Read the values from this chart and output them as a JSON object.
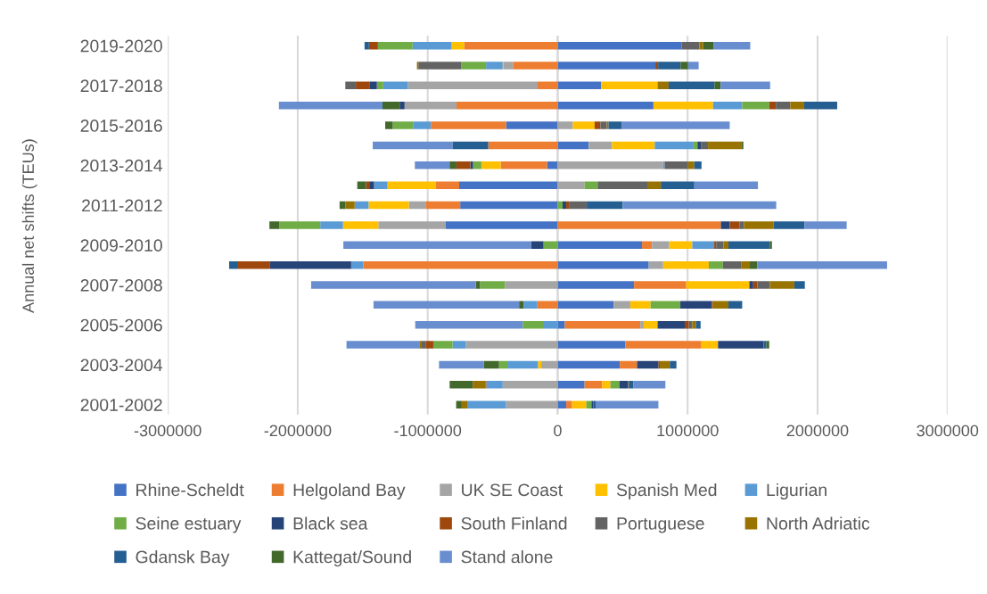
{
  "chart_data": {
    "type": "bar",
    "orientation": "horizontal",
    "stacked": true,
    "ylabel": "Annual net shifts (TEUs)",
    "categories": [
      "2019-2020",
      null,
      "2017-2018",
      null,
      "2015-2016",
      null,
      "2013-2014",
      null,
      "2011-2012",
      null,
      "2009-2010",
      null,
      "2007-2008",
      null,
      "2005-2006",
      null,
      "2003-2004",
      null,
      "2001-2002"
    ],
    "xlim": [
      -3000000,
      3000000
    ],
    "xticks": [
      -3000000,
      -2000000,
      -1000000,
      0,
      1000000,
      2000000,
      3000000
    ],
    "grid": "x",
    "legend": "bottom",
    "series": [
      {
        "name": "Rhine-Scheldt",
        "color": "#4472c4",
        "values": [
          953000,
          752000,
          335000,
          737000,
          -397000,
          239000,
          -81000,
          -758000,
          -750000,
          -861000,
          649000,
          701000,
          588000,
          431000,
          55000,
          521000,
          478000,
          207000,
          66000
        ]
      },
      {
        "name": "Helgoland Bay",
        "color": "#ed7d31",
        "values": [
          -720000,
          -344000,
          -154000,
          -778000,
          -579000,
          -534000,
          -357000,
          -178000,
          -267000,
          1256000,
          77000,
          -1495000,
          402000,
          -156000,
          581000,
          585000,
          133000,
          135000,
          45000
        ]
      },
      {
        "name": "UK SE Coast",
        "color": "#a5a5a5",
        "values": [
          null,
          -71000,
          -998000,
          -400000,
          117000,
          179000,
          812000,
          207000,
          -128000,
          -519000,
          133000,
          111000,
          -406000,
          128000,
          26000,
          -707000,
          -126000,
          -423000,
          -397000
        ]
      },
      {
        "name": "Spanish Med",
        "color": "#ffc000",
        "values": [
          -96000,
          -8000,
          434000,
          459000,
          167000,
          329000,
          -149000,
          -374000,
          -310000,
          -272000,
          177000,
          351000,
          485000,
          156000,
          107000,
          128000,
          -26000,
          64000,
          109000
        ]
      },
      {
        "name": "Ligurian",
        "color": "#5b9bd5",
        "values": [
          -300000,
          -128000,
          -190000,
          224000,
          -137000,
          299000,
          11000,
          -103000,
          -107000,
          -175000,
          169000,
          -94000,
          null,
          -107000,
          -113000,
          -101000,
          -235000,
          -126000,
          -299000
        ]
      },
      {
        "name": "Seine estuary",
        "color": "#70ad47",
        "values": [
          -267000,
          -192000,
          -49000,
          208000,
          -156000,
          30000,
          -64000,
          101000,
          38000,
          -314000,
          -109000,
          109000,
          -192000,
          229000,
          -156000,
          -149000,
          -64000,
          71000,
          40000
        ]
      },
      {
        "name": "Black sea",
        "color": "#264478",
        "values": [
          null,
          null,
          -58000,
          -38000,
          null,
          30000,
          -21000,
          -37000,
          28000,
          68000,
          -96000,
          -624000,
          30000,
          242000,
          209000,
          351000,
          165000,
          64000,
          13000
        ]
      },
      {
        "name": "South Finland",
        "color": "#9e480e",
        "values": [
          -69000,
          21000,
          -104000,
          51000,
          45000,
          null,
          -107000,
          -24000,
          21000,
          77000,
          15000,
          -253000,
          32000,
          10000,
          32000,
          -60000,
          10000,
          -8000,
          null
        ]
      },
      {
        "name": "Portuguese",
        "color": "#636363",
        "values": [
          138000,
          -329000,
          -81000,
          111000,
          49000,
          51000,
          181000,
          388000,
          137000,
          32000,
          56000,
          143000,
          96000,
          null,
          26000,
          -29000,
          null,
          11000,
          null
        ]
      },
      {
        "name": "North Adriatic",
        "color": "#997300",
        "values": [
          28000,
          -11000,
          85000,
          107000,
          13000,
          259000,
          47000,
          98000,
          -71000,
          229000,
          38000,
          64000,
          188000,
          118000,
          28000,
          -19000,
          77000,
          -96000,
          -42000
        ]
      },
      {
        "name": "Gdansk Bay",
        "color": "#255e91",
        "values": [
          -34000,
          173000,
          353000,
          254000,
          104000,
          -276000,
          56000,
          258000,
          276000,
          237000,
          318000,
          -62000,
          81000,
          106000,
          36000,
          21000,
          51000,
          29000,
          19000
        ]
      },
      {
        "name": "Kattegat/Sound",
        "color": "#43682b",
        "values": [
          79000,
          58000,
          47000,
          -132000,
          -58000,
          13000,
          -53000,
          -68000,
          -45000,
          -77000,
          17000,
          56000,
          -32000,
          -34000,
          null,
          22000,
          -118000,
          -178000,
          -43000
        ]
      },
      {
        "name": "Stand alone",
        "color": "#698ed0",
        "values": [
          284000,
          81000,
          381000,
          -797000,
          829000,
          -613000,
          -267000,
          489000,
          1182000,
          325000,
          -1444000,
          1000000,
          -1267000,
          -1120000,
          -827000,
          -560000,
          -344000,
          248000,
          483000
        ]
      }
    ]
  }
}
